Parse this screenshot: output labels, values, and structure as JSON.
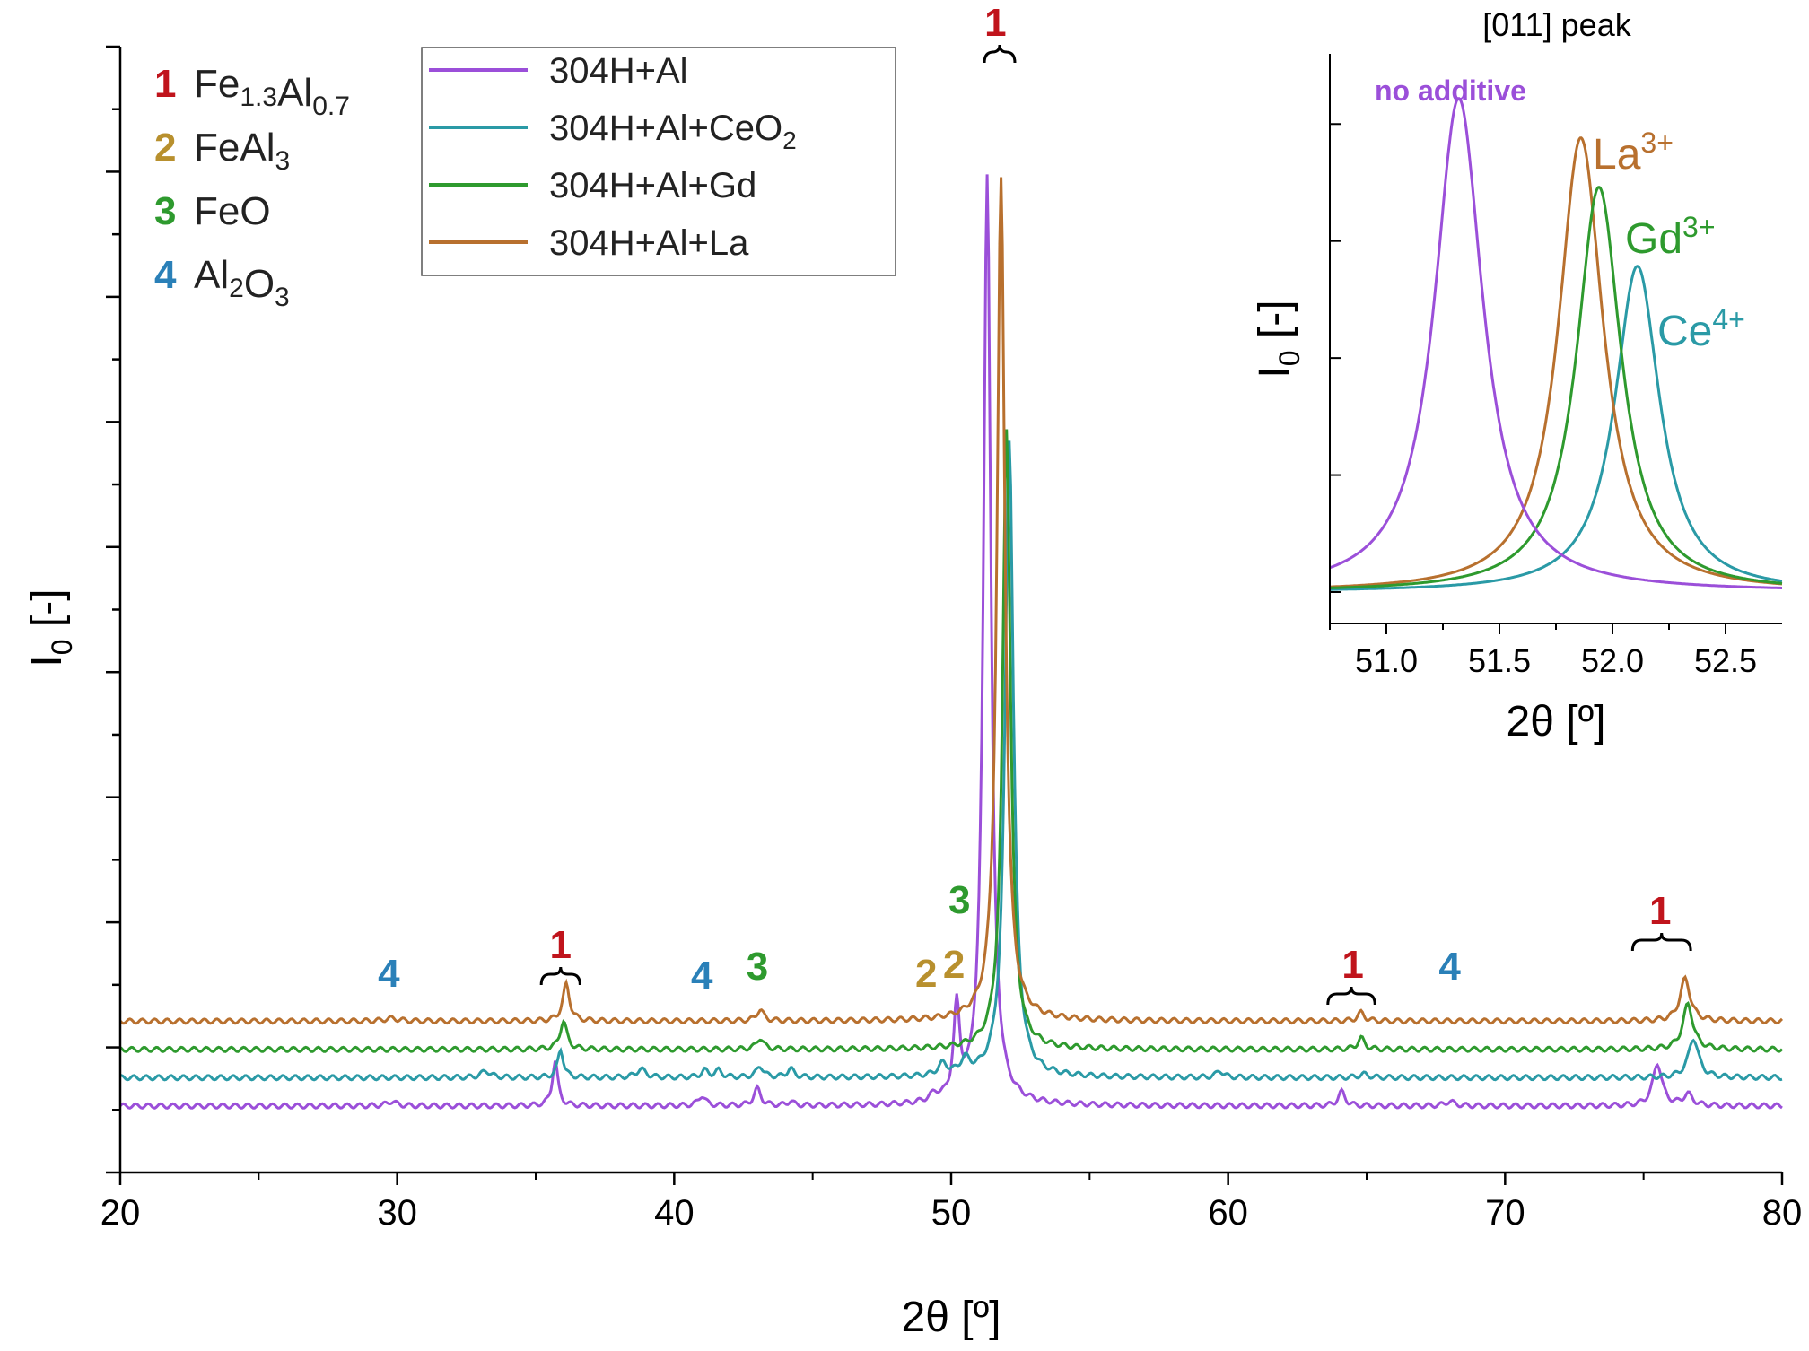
{
  "chart_data": [
    {
      "type": "line",
      "name": "main",
      "xlabel": "2θ [º]",
      "ylabel": "I",
      "ylabel_sub": "0",
      "ylabel_suffix": " [-]",
      "xlim": [
        20,
        80
      ],
      "xticks": [
        20,
        30,
        40,
        50,
        60,
        70,
        80
      ],
      "yticks_minor": 18,
      "legend": {
        "position": "top-left",
        "entries": [
          {
            "name": "304H+Al",
            "color": "#9b4fd9"
          },
          {
            "name": "304H+Al+CeO",
            "sub": "2",
            "color": "#2a9aa6"
          },
          {
            "name": "304H+Al+Gd",
            "color": "#2e9a2e"
          },
          {
            "name": "304H+Al+La",
            "color": "#b8702e"
          }
        ]
      },
      "phase_key": [
        {
          "num": "1",
          "parts": [
            "Fe",
            "_1.3",
            "Al",
            "_0.7"
          ],
          "color": "#c0141c"
        },
        {
          "num": "2",
          "parts": [
            "FeAl",
            "_3"
          ],
          "color": "#b8902e"
        },
        {
          "num": "3",
          "parts": [
            "FeO"
          ],
          "color": "#2e9a2e"
        },
        {
          "num": "4",
          "parts": [
            "Al",
            "_2",
            "O",
            "_3"
          ],
          "color": "#2a80b8"
        }
      ],
      "series": [
        {
          "name": "304H+Al",
          "color": "#9b4fd9",
          "baseline": 1.05,
          "peaks": [
            [
              29.8,
              0.08,
              0.2
            ],
            [
              35.7,
              0.8,
              0.12
            ],
            [
              41.0,
              0.18,
              0.15
            ],
            [
              43.0,
              0.3,
              0.15
            ],
            [
              44.2,
              0.08,
              0.12
            ],
            [
              49.4,
              0.12,
              0.2
            ],
            [
              50.2,
              1.6,
              0.13
            ],
            [
              51.3,
              16.5,
              0.16
            ],
            [
              64.1,
              0.25,
              0.15
            ],
            [
              68.0,
              0.08,
              0.2
            ],
            [
              75.5,
              0.75,
              0.2
            ],
            [
              76.6,
              0.2,
              0.2
            ]
          ]
        },
        {
          "name": "304H+Al+CeO2",
          "color": "#2a9aa6",
          "baseline": 1.55,
          "peaks": [
            [
              33.2,
              0.12,
              0.2
            ],
            [
              35.9,
              0.5,
              0.12
            ],
            [
              38.8,
              0.15,
              0.2
            ],
            [
              41.1,
              0.12,
              0.15
            ],
            [
              41.6,
              0.12,
              0.15
            ],
            [
              43.1,
              0.2,
              0.15
            ],
            [
              44.2,
              0.15,
              0.15
            ],
            [
              49.7,
              0.2,
              0.2
            ],
            [
              50.5,
              0.25,
              0.2
            ],
            [
              52.1,
              11.3,
              0.18
            ],
            [
              59.7,
              0.12,
              0.15
            ],
            [
              64.9,
              0.06,
              0.2
            ],
            [
              76.8,
              0.7,
              0.22
            ]
          ]
        },
        {
          "name": "304H+Al+Gd",
          "color": "#2e9a2e",
          "baseline": 2.05,
          "peaks": [
            [
              36.0,
              0.5,
              0.15
            ],
            [
              43.1,
              0.2,
              0.15
            ],
            [
              52.0,
              11.0,
              0.17
            ],
            [
              64.8,
              0.2,
              0.15
            ],
            [
              76.6,
              0.8,
              0.22
            ]
          ]
        },
        {
          "name": "304H+Al+La",
          "color": "#b8702e",
          "baseline": 2.55,
          "peaks": [
            [
              29.8,
              0.05,
              0.3
            ],
            [
              36.1,
              0.65,
              0.15
            ],
            [
              43.1,
              0.2,
              0.15
            ],
            [
              51.8,
              14.9,
              0.17
            ],
            [
              64.8,
              0.15,
              0.15
            ],
            [
              76.5,
              0.75,
              0.22
            ]
          ]
        }
      ],
      "peak_annotations": [
        {
          "label": "1",
          "x": 51.6,
          "color": "#c0141c",
          "bracket": [
            51.2,
            52.3
          ]
        },
        {
          "label": "1",
          "x": 35.9,
          "color": "#c0141c",
          "bracket": [
            35.2,
            36.6
          ]
        },
        {
          "label": "1",
          "x": 64.5,
          "color": "#c0141c",
          "bracket": [
            63.6,
            65.3
          ]
        },
        {
          "label": "1",
          "x": 75.6,
          "color": "#c0141c",
          "bracket": [
            74.6,
            76.7
          ]
        },
        {
          "label": "2",
          "x": 49.1,
          "color": "#b8902e"
        },
        {
          "label": "2",
          "x": 50.1,
          "color": "#b8902e"
        },
        {
          "label": "3",
          "x": 50.3,
          "color": "#2e9a2e"
        },
        {
          "label": "3",
          "x": 43.0,
          "color": "#2e9a2e"
        },
        {
          "label": "4",
          "x": 29.7,
          "color": "#2a80b8"
        },
        {
          "label": "4",
          "x": 41.0,
          "color": "#2a80b8"
        },
        {
          "label": "4",
          "x": 68.0,
          "color": "#2a80b8"
        }
      ]
    },
    {
      "type": "line",
      "name": "inset",
      "title": "[011] peak",
      "xlabel": "2θ [º]",
      "ylabel": "I",
      "ylabel_sub": "0",
      "ylabel_suffix": " [-]",
      "xlim": [
        50.75,
        52.75
      ],
      "xticks": [
        51.0,
        51.5,
        52.0,
        52.5
      ],
      "ylim": [
        0,
        1.09
      ],
      "series": [
        {
          "name": "no additive",
          "label": "no additive",
          "label_sup": "",
          "color": "#9b4fd9",
          "center": 51.32,
          "height": 1.0,
          "width": 0.13
        },
        {
          "name": "La",
          "label": "La",
          "label_sup": "3+",
          "color": "#b8702e",
          "center": 51.86,
          "height": 0.92,
          "width": 0.12
        },
        {
          "name": "Gd",
          "label": "Gd",
          "label_sup": "3+",
          "color": "#2e9a2e",
          "center": 51.94,
          "height": 0.82,
          "width": 0.12
        },
        {
          "name": "Ce",
          "label": "Ce",
          "label_sup": "4+",
          "color": "#2a9aa6",
          "center": 52.11,
          "height": 0.66,
          "width": 0.12
        }
      ]
    }
  ]
}
